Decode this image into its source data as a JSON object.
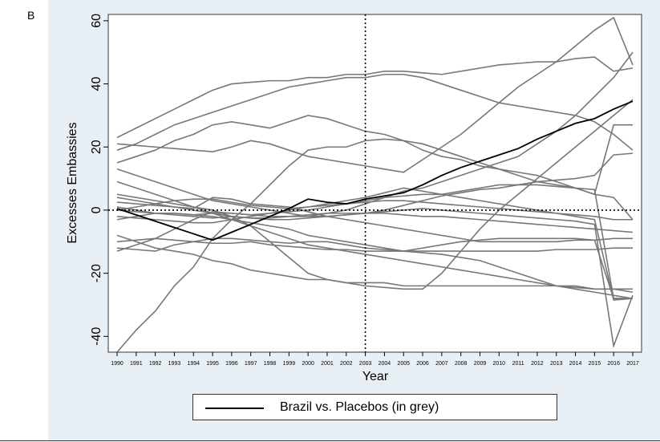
{
  "panel_label": "B",
  "chart_data": {
    "type": "line",
    "title": "",
    "xlabel": "Year",
    "ylabel": "Excesses Embassies",
    "x": [
      1990,
      1991,
      1992,
      1993,
      1994,
      1995,
      1996,
      1997,
      1998,
      1999,
      2000,
      2001,
      2002,
      2003,
      2004,
      2005,
      2006,
      2007,
      2008,
      2009,
      2010,
      2011,
      2012,
      2013,
      2014,
      2015,
      2016,
      2017
    ],
    "xlim": [
      1990,
      2017
    ],
    "ylim": [
      -45,
      62
    ],
    "yticks": [
      -40,
      -20,
      0,
      20,
      40,
      60
    ],
    "vertical_line_at": 2003,
    "horizontal_line_at": 0,
    "grid": false,
    "legend_position": "bottom",
    "legend_label": "Brazil vs. Placebos (in grey)",
    "colors": {
      "treated": "#000000",
      "placebo": "#777777",
      "background_outer": "#e8f0f5",
      "background_plot": "#ffffff"
    },
    "treated": {
      "name": "Brazil vs. Placebos (in grey)",
      "values": [
        0.5,
        -1.5,
        -3.5,
        -5.5,
        -7.5,
        -9.5,
        -7,
        -4.5,
        -2,
        0.5,
        3.5,
        2.5,
        2,
        3.5,
        4.5,
        5.5,
        8,
        11,
        13.5,
        15.5,
        17.5,
        19.5,
        22.5,
        25,
        27.5,
        29,
        32,
        34.5
      ]
    },
    "placebos": [
      {
        "values": [
          -45,
          -38,
          -32,
          -24,
          -18,
          -9,
          -3,
          2,
          8,
          14,
          19,
          20,
          20,
          22,
          22.5,
          22,
          21,
          19,
          17,
          15,
          13,
          11,
          9,
          8,
          7,
          5,
          4,
          -3
        ]
      },
      {
        "values": [
          23,
          26,
          29,
          32,
          35,
          38,
          40,
          40.5,
          41,
          41,
          42,
          42,
          43,
          43,
          44,
          44,
          43.5,
          43,
          44,
          45,
          46,
          46.5,
          47,
          47,
          48,
          48.5,
          44,
          45
        ]
      },
      {
        "values": [
          15,
          17,
          19,
          22,
          24,
          27,
          28,
          27,
          26,
          28,
          30,
          29,
          27,
          25,
          24,
          22,
          19,
          17,
          16,
          14,
          13,
          12,
          11,
          9,
          7,
          5,
          27,
          27
        ]
      },
      {
        "values": [
          19,
          21,
          24,
          27,
          29,
          31,
          33,
          35,
          37,
          39,
          40,
          41,
          42,
          42,
          43,
          43,
          42,
          40,
          38,
          36,
          34,
          33,
          32,
          31,
          30,
          28,
          24,
          19
        ]
      },
      {
        "values": [
          21,
          20.5,
          20,
          19.5,
          19,
          18.5,
          20,
          22,
          21,
          19,
          17,
          16,
          15,
          14,
          13,
          12,
          16,
          20,
          24,
          29,
          34,
          39,
          43,
          47,
          52,
          57,
          61,
          46
        ]
      },
      {
        "values": [
          13,
          11,
          9,
          7,
          5,
          3,
          2,
          1,
          0,
          -1,
          -2,
          -1,
          0,
          2,
          4,
          6,
          7,
          9,
          11,
          13,
          15,
          17,
          21,
          25,
          30,
          36,
          42,
          50
        ]
      },
      {
        "values": [
          -13,
          -11,
          -9,
          -6,
          -3,
          -0.5,
          -1,
          -1.5,
          -1,
          -0.5,
          0,
          1,
          2,
          3,
          4,
          4.5,
          5,
          5,
          6,
          7,
          8,
          8,
          8,
          7.5,
          7,
          6.5,
          -28,
          -28
        ]
      },
      {
        "values": [
          2.5,
          2,
          1.5,
          1,
          0.5,
          4,
          3.5,
          2,
          1.5,
          1,
          -0.5,
          -2,
          -3,
          -4,
          -5,
          -6,
          -7,
          -8,
          -9,
          -10,
          -10,
          -10,
          -10,
          -10,
          -9.5,
          -9.5,
          -9,
          -9
        ]
      },
      {
        "values": [
          -3,
          -2,
          -1,
          -1,
          -1.5,
          -2,
          -3,
          -4,
          -5,
          -6,
          -8,
          -9,
          -10,
          -11,
          -12,
          -13,
          -13.5,
          -14,
          -15,
          -16,
          -18,
          -20,
          -22,
          -24,
          -25,
          -26,
          -27,
          -28
        ]
      },
      {
        "values": [
          0,
          1,
          2,
          3,
          3.5,
          3.5,
          2.5,
          1.5,
          1,
          0.5,
          1,
          2,
          3,
          4,
          5.5,
          7,
          6,
          5,
          4,
          3,
          2,
          1,
          0,
          -1,
          -2,
          -3,
          -28.5,
          -28
        ]
      },
      {
        "values": [
          9,
          7,
          5,
          3,
          1,
          -1,
          -3,
          -5,
          -7,
          -9,
          -11,
          -12,
          -13,
          -14,
          -15,
          -16,
          -17,
          -18,
          -19,
          -20,
          -21,
          -22,
          -23,
          -24,
          -24,
          -25,
          -25,
          -26
        ]
      },
      {
        "values": [
          -8,
          -10,
          -12,
          -13,
          -14,
          -16,
          -17,
          -19,
          -20,
          -21,
          -22,
          -22,
          -23,
          -23,
          -23,
          -24,
          -24,
          -24,
          -24,
          -24,
          -24,
          -24,
          -24,
          -24,
          -24.5,
          -25,
          -25,
          -25
        ]
      },
      {
        "values": [
          5,
          4,
          3,
          2,
          1,
          0,
          -2,
          -5,
          -10,
          -15,
          -20,
          -22,
          -23,
          -24,
          -24.5,
          -25,
          -25,
          -20,
          -13,
          -6,
          0,
          5,
          10,
          15,
          20,
          25,
          30,
          35
        ]
      },
      {
        "values": [
          -12,
          -12.5,
          -13,
          -11,
          -10,
          -9,
          -9,
          -9.5,
          -10,
          -10.5,
          -10,
          -10,
          -11,
          -12,
          -12.5,
          -13,
          -12,
          -11,
          -10,
          -9.5,
          -9,
          -9,
          -9,
          -9,
          -9,
          -9.5,
          -28,
          -28
        ]
      },
      {
        "values": [
          1,
          0,
          -1,
          -1.5,
          -2,
          -2.5,
          -2,
          -2.5,
          -2.5,
          -2,
          -1.5,
          -1,
          -1,
          -1,
          -1,
          -1.5,
          -2,
          -2,
          -2.5,
          -3,
          -3.5,
          -4,
          -4.5,
          -5,
          -5.5,
          -6,
          -6.5,
          -7
        ]
      },
      {
        "values": [
          -2,
          -2.5,
          -3,
          -3.5,
          -4,
          -4,
          -3,
          -2,
          -1,
          0,
          1,
          1.5,
          2,
          2.5,
          3,
          3,
          2.5,
          2,
          1.5,
          1,
          0.5,
          0,
          -0.5,
          -1,
          -1.5,
          -2,
          -3,
          -3
        ]
      },
      {
        "values": [
          4,
          3,
          2,
          1,
          0,
          -1,
          -2,
          -2.5,
          -3,
          -3,
          -2.5,
          -2,
          -1.5,
          -1,
          -0.5,
          0,
          0.5,
          0,
          -0.5,
          -1,
          -1.5,
          -2,
          -2.5,
          -3,
          -3.5,
          -4.5,
          -43,
          -27
        ]
      },
      {
        "values": [
          0,
          -0.5,
          -1,
          -1,
          -1.5,
          -1,
          -1,
          -1.5,
          -2,
          -2,
          -2,
          -2,
          -1.5,
          -1,
          0,
          1.5,
          3,
          4.5,
          5.5,
          6.5,
          7,
          8,
          9,
          9.5,
          10,
          11,
          17.5,
          18
        ]
      },
      {
        "values": [
          -10,
          -9.5,
          -9,
          -9.5,
          -10,
          -10.5,
          -10.5,
          -10,
          -11,
          -11.5,
          -12,
          -12.5,
          -12.5,
          -13,
          -13,
          -13,
          -13,
          -13,
          -13,
          -13,
          -13,
          -13,
          -13,
          -12.5,
          -12.5,
          -12.5,
          -12,
          -12
        ]
      }
    ]
  }
}
